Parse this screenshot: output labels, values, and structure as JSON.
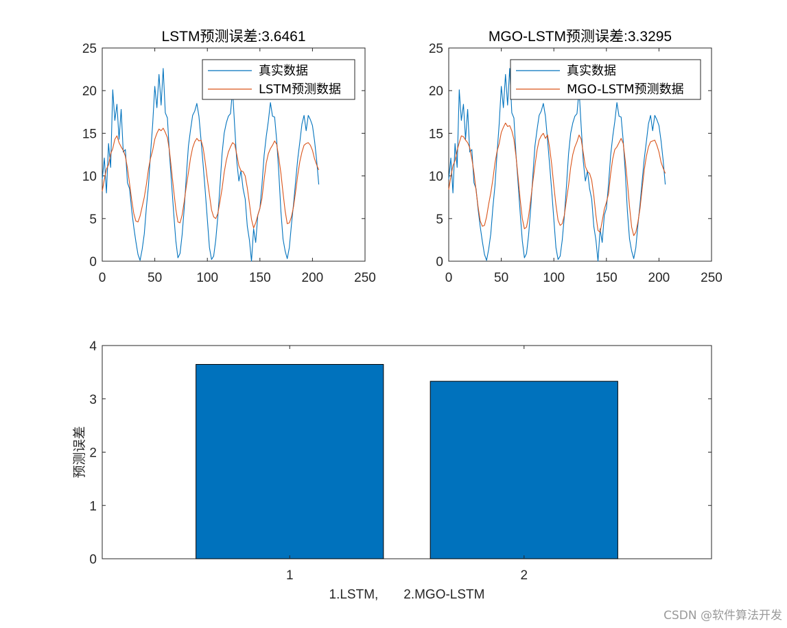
{
  "watermark": "CSDN @软件算法开发",
  "chart_data": [
    {
      "type": "line",
      "title": "LSTM预测误差:3.6461",
      "xlabel": "",
      "ylabel": "",
      "xlim": [
        0,
        250
      ],
      "ylim": [
        0,
        25
      ],
      "xticks": [
        0,
        50,
        100,
        150,
        200,
        250
      ],
      "yticks": [
        0,
        5,
        10,
        15,
        20,
        25
      ],
      "grid": false,
      "legend_position": "top-right",
      "colors": [
        "#0072BD",
        "#D95319"
      ],
      "series": [
        {
          "name": "真实数据",
          "x": [
            0,
            2,
            4,
            6,
            8,
            10,
            12,
            14,
            16,
            18,
            20,
            22,
            24,
            26,
            28,
            30,
            32,
            34,
            36,
            38,
            40,
            42,
            44,
            46,
            48,
            50,
            52,
            54,
            56,
            58,
            60,
            62,
            64,
            66,
            68,
            70,
            72,
            74,
            76,
            78,
            80,
            82,
            84,
            86,
            88,
            90,
            92,
            94,
            96,
            98,
            100,
            102,
            104,
            106,
            108,
            110,
            112,
            114,
            116,
            118,
            120,
            122,
            124,
            126,
            128,
            130,
            132,
            134,
            136,
            138,
            140,
            142,
            144,
            146,
            148,
            150,
            152,
            154,
            156,
            158,
            160,
            162,
            164,
            166,
            168,
            170,
            172,
            174,
            176,
            178,
            180,
            182,
            184,
            186,
            188,
            190,
            192,
            194,
            196,
            198,
            200,
            202,
            204,
            206
          ],
          "values": [
            9.6,
            12.1,
            8.0,
            13.8,
            11.0,
            20.1,
            16.5,
            18.4,
            14.3,
            17.8,
            12.8,
            13.1,
            9.2,
            8.5,
            6.0,
            4.0,
            2.3,
            0.8,
            0.1,
            1.4,
            3.2,
            6.3,
            8.9,
            12.7,
            16.1,
            20.5,
            18.0,
            21.9,
            18.3,
            22.6,
            17.4,
            16.8,
            12.5,
            9.1,
            5.6,
            2.4,
            0.4,
            0.9,
            3.1,
            6.2,
            10.0,
            13.5,
            15.4,
            17.1,
            17.6,
            18.5,
            17.0,
            14.2,
            11.3,
            8.2,
            4.9,
            1.6,
            0.2,
            0.6,
            2.5,
            5.3,
            8.8,
            12.6,
            15.0,
            16.2,
            17.0,
            17.3,
            20.1,
            15.8,
            11.7,
            9.4,
            10.6,
            8.5,
            7.3,
            4.1,
            2.5,
            0.0,
            3.8,
            2.2,
            5.4,
            6.2,
            9.0,
            12.4,
            14.6,
            16.4,
            18.6,
            17.0,
            16.9,
            14.1,
            10.3,
            5.8,
            2.6,
            1.2,
            0.3,
            1.6,
            4.3,
            6.7,
            9.4,
            12.0,
            14.0,
            16.1,
            17.1,
            15.3,
            17.1,
            16.6,
            15.9,
            14.1,
            11.8,
            9.0
          ]
        },
        {
          "name": "LSTM预测数据",
          "x": [
            0,
            2,
            4,
            6,
            8,
            10,
            12,
            14,
            16,
            18,
            20,
            22,
            24,
            26,
            28,
            30,
            32,
            34,
            36,
            38,
            40,
            42,
            44,
            46,
            48,
            50,
            52,
            54,
            56,
            58,
            60,
            62,
            64,
            66,
            68,
            70,
            72,
            74,
            76,
            78,
            80,
            82,
            84,
            86,
            88,
            90,
            92,
            94,
            96,
            98,
            100,
            102,
            104,
            106,
            108,
            110,
            112,
            114,
            116,
            118,
            120,
            122,
            124,
            126,
            128,
            130,
            132,
            134,
            136,
            138,
            140,
            142,
            144,
            146,
            148,
            150,
            152,
            154,
            156,
            158,
            160,
            162,
            164,
            166,
            168,
            170,
            172,
            174,
            176,
            178,
            180,
            182,
            184,
            186,
            188,
            190,
            192,
            194,
            196,
            198,
            200,
            202,
            204,
            206
          ],
          "values": [
            8.2,
            9.6,
            10.8,
            11.3,
            12.6,
            13.2,
            14.3,
            14.7,
            13.9,
            13.4,
            13.0,
            12.3,
            10.9,
            9.1,
            7.2,
            5.6,
            4.7,
            4.6,
            5.3,
            6.4,
            7.5,
            9.0,
            10.8,
            12.1,
            13.0,
            14.3,
            15.0,
            15.5,
            15.3,
            15.6,
            15.1,
            14.5,
            12.9,
            10.6,
            8.3,
            6.1,
            4.6,
            4.5,
            5.4,
            7.0,
            8.8,
            10.4,
            12.1,
            13.3,
            14.0,
            14.4,
            14.1,
            14.2,
            13.3,
            11.6,
            9.6,
            7.8,
            6.0,
            5.2,
            5.0,
            5.6,
            7.0,
            8.5,
            10.4,
            11.8,
            12.8,
            13.4,
            13.9,
            13.7,
            12.5,
            11.2,
            10.6,
            10.5,
            10.0,
            8.6,
            6.8,
            4.9,
            3.9,
            4.5,
            5.4,
            6.2,
            7.4,
            9.6,
            11.5,
            12.6,
            13.2,
            13.6,
            14.1,
            13.7,
            12.1,
            10.3,
            8.0,
            5.9,
            4.4,
            4.5,
            5.2,
            6.4,
            8.2,
            10.1,
            11.7,
            12.8,
            13.6,
            13.8,
            13.9,
            13.6,
            13.0,
            12.0,
            11.3,
            10.7
          ]
        }
      ]
    },
    {
      "type": "line",
      "title": "MGO-LSTM预测误差:3.3295",
      "xlabel": "",
      "ylabel": "",
      "xlim": [
        0,
        250
      ],
      "ylim": [
        0,
        25
      ],
      "xticks": [
        0,
        50,
        100,
        150,
        200,
        250
      ],
      "yticks": [
        0,
        5,
        10,
        15,
        20,
        25
      ],
      "grid": false,
      "legend_position": "top-right",
      "colors": [
        "#0072BD",
        "#D95319"
      ],
      "series": [
        {
          "name": "真实数据",
          "x": [
            0,
            2,
            4,
            6,
            8,
            10,
            12,
            14,
            16,
            18,
            20,
            22,
            24,
            26,
            28,
            30,
            32,
            34,
            36,
            38,
            40,
            42,
            44,
            46,
            48,
            50,
            52,
            54,
            56,
            58,
            60,
            62,
            64,
            66,
            68,
            70,
            72,
            74,
            76,
            78,
            80,
            82,
            84,
            86,
            88,
            90,
            92,
            94,
            96,
            98,
            100,
            102,
            104,
            106,
            108,
            110,
            112,
            114,
            116,
            118,
            120,
            122,
            124,
            126,
            128,
            130,
            132,
            134,
            136,
            138,
            140,
            142,
            144,
            146,
            148,
            150,
            152,
            154,
            156,
            158,
            160,
            162,
            164,
            166,
            168,
            170,
            172,
            174,
            176,
            178,
            180,
            182,
            184,
            186,
            188,
            190,
            192,
            194,
            196,
            198,
            200,
            202,
            204,
            206
          ],
          "values": [
            9.6,
            12.1,
            8.0,
            13.8,
            11.0,
            20.1,
            16.5,
            18.4,
            14.3,
            17.8,
            12.8,
            13.1,
            9.2,
            8.5,
            6.0,
            4.0,
            2.3,
            0.8,
            0.1,
            1.4,
            3.2,
            6.3,
            8.9,
            12.7,
            16.1,
            20.5,
            18.0,
            21.9,
            18.3,
            22.6,
            17.4,
            16.8,
            12.5,
            9.1,
            5.6,
            2.4,
            0.4,
            0.9,
            3.1,
            6.2,
            10.0,
            13.5,
            15.4,
            17.1,
            17.6,
            18.5,
            17.0,
            14.2,
            11.3,
            8.2,
            4.9,
            1.6,
            0.2,
            0.6,
            2.5,
            5.3,
            8.8,
            12.6,
            15.0,
            16.2,
            17.0,
            17.3,
            20.1,
            15.8,
            11.7,
            9.4,
            10.6,
            8.5,
            7.3,
            4.1,
            2.5,
            0.0,
            3.8,
            2.2,
            5.4,
            6.2,
            9.0,
            12.4,
            14.6,
            16.4,
            18.6,
            17.0,
            16.9,
            14.1,
            10.3,
            5.8,
            2.6,
            1.2,
            0.3,
            1.6,
            4.3,
            6.7,
            9.4,
            12.0,
            14.0,
            16.1,
            17.1,
            15.3,
            17.1,
            16.6,
            15.9,
            14.1,
            11.8,
            9.0
          ]
        },
        {
          "name": "MGO-LSTM预测数据",
          "x": [
            0,
            2,
            4,
            6,
            8,
            10,
            12,
            14,
            16,
            18,
            20,
            22,
            24,
            26,
            28,
            30,
            32,
            34,
            36,
            38,
            40,
            42,
            44,
            46,
            48,
            50,
            52,
            54,
            56,
            58,
            60,
            62,
            64,
            66,
            68,
            70,
            72,
            74,
            76,
            78,
            80,
            82,
            84,
            86,
            88,
            90,
            92,
            94,
            96,
            98,
            100,
            102,
            104,
            106,
            108,
            110,
            112,
            114,
            116,
            118,
            120,
            122,
            124,
            126,
            128,
            130,
            132,
            134,
            136,
            138,
            140,
            142,
            144,
            146,
            148,
            150,
            152,
            154,
            156,
            158,
            160,
            162,
            164,
            166,
            168,
            170,
            172,
            174,
            176,
            178,
            180,
            182,
            184,
            186,
            188,
            190,
            192,
            194,
            196,
            198,
            200,
            202,
            204,
            206
          ],
          "values": [
            8.4,
            9.9,
            11.2,
            11.8,
            13.0,
            13.9,
            14.7,
            14.6,
            14.2,
            13.9,
            13.3,
            12.0,
            10.4,
            8.3,
            6.3,
            4.7,
            4.1,
            4.2,
            5.2,
            6.7,
            8.0,
            9.6,
            11.5,
            12.9,
            13.8,
            15.1,
            15.7,
            16.2,
            15.8,
            15.9,
            15.3,
            14.3,
            12.3,
            9.8,
            7.2,
            5.0,
            3.8,
            4.0,
            5.3,
            7.2,
            9.3,
            11.2,
            13.0,
            14.2,
            14.7,
            15.0,
            14.4,
            14.8,
            13.3,
            11.3,
            8.8,
            6.6,
            4.8,
            4.2,
            4.4,
            5.4,
            7.2,
            8.9,
            11.0,
            12.5,
            13.4,
            14.0,
            14.8,
            14.3,
            12.7,
            11.1,
            10.5,
            10.3,
            9.5,
            7.7,
            5.4,
            3.6,
            3.4,
            4.7,
            6.1,
            6.9,
            7.9,
            10.2,
            12.0,
            13.1,
            13.4,
            13.9,
            14.4,
            13.8,
            11.7,
            9.2,
            6.4,
            4.0,
            3.0,
            3.4,
            4.6,
            6.2,
            8.5,
            10.7,
            12.3,
            13.4,
            14.0,
            14.1,
            14.2,
            13.6,
            12.8,
            11.6,
            10.9,
            10.3
          ]
        }
      ]
    },
    {
      "type": "bar",
      "title": "",
      "categories": [
        "1",
        "2"
      ],
      "values": [
        3.6461,
        3.3295
      ],
      "xlabel": "1.LSTM,       2.MGO-LSTM",
      "ylabel": "预测误差",
      "xlim": [
        0.2,
        2.8
      ],
      "ylim": [
        0,
        4
      ],
      "yticks": [
        0,
        1,
        2,
        3,
        4
      ],
      "bar_color": "#0072BD",
      "grid": false
    }
  ]
}
